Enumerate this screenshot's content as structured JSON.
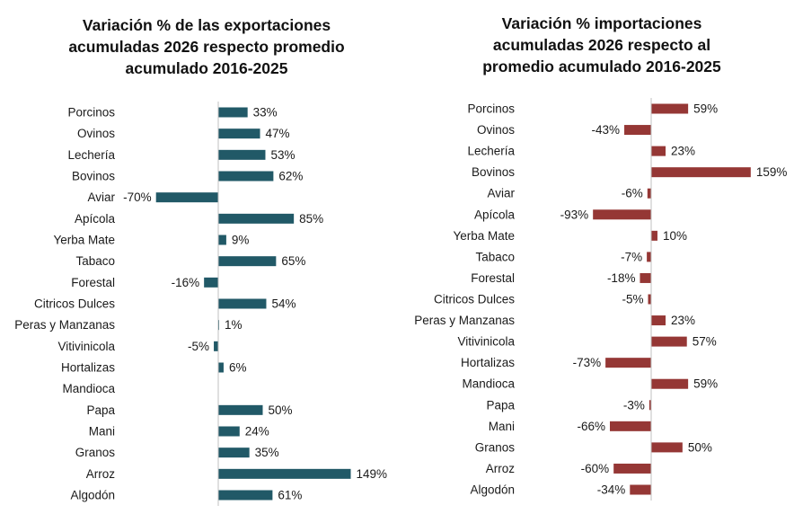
{
  "chart_data": [
    {
      "type": "bar",
      "orientation": "horizontal",
      "title_lines": [
        "Variación % de las exportaciones",
        "acumuladas 2026 respecto promedio",
        "acumulado 2016-2025"
      ],
      "categories": [
        "Porcinos",
        "Ovinos",
        "Lechería",
        "Bovinos",
        "Aviar",
        "Apícola",
        "Yerba Mate",
        "Tabaco",
        "Forestal",
        "Citricos Dulces",
        "Peras y Manzanas",
        "Vitivinicola",
        "Hortalizas",
        "Mandioca",
        "Papa",
        "Mani",
        "Granos",
        "Arroz",
        "Algodón"
      ],
      "values": [
        33,
        47,
        53,
        62,
        -70,
        85,
        9,
        65,
        -16,
        54,
        1,
        -5,
        6,
        null,
        50,
        24,
        35,
        149,
        61
      ],
      "value_labels": [
        "33%",
        "47%",
        "53%",
        "62%",
        "-70%",
        "85%",
        "9%",
        "65%",
        "-16%",
        "54%",
        "1%",
        "-5%",
        "6%",
        "",
        "50%",
        "24%",
        "35%",
        "149%",
        "61%"
      ],
      "color": "#215967",
      "grid": false,
      "legend": "none"
    },
    {
      "type": "bar",
      "orientation": "horizontal",
      "title_lines": [
        "Variación % importaciones",
        "acumuladas 2026 respecto al",
        "promedio acumulado 2016-2025"
      ],
      "categories": [
        "Porcinos",
        "Ovinos",
        "Lechería",
        "Bovinos",
        "Aviar",
        "Apícola",
        "Yerba Mate",
        "Tabaco",
        "Forestal",
        "Citricos Dulces",
        "Peras y Manzanas",
        "Vitivinicola",
        "Hortalizas",
        "Mandioca",
        "Papa",
        "Mani",
        "Granos",
        "Arroz",
        "Algodón"
      ],
      "values": [
        59,
        -43,
        23,
        159,
        -6,
        -93,
        10,
        -7,
        -18,
        -5,
        23,
        57,
        -73,
        59,
        -3,
        -66,
        50,
        -60,
        -34
      ],
      "value_labels": [
        "59%",
        "-43%",
        "23%",
        "159%",
        "-6%",
        "-93%",
        "10%",
        "-7%",
        "-18%",
        "-5%",
        "23%",
        "57%",
        "-73%",
        "59%",
        "-3%",
        "-66%",
        "50%",
        "-60%",
        "-34%"
      ],
      "color": "#953735",
      "grid": false,
      "legend": "none"
    }
  ]
}
